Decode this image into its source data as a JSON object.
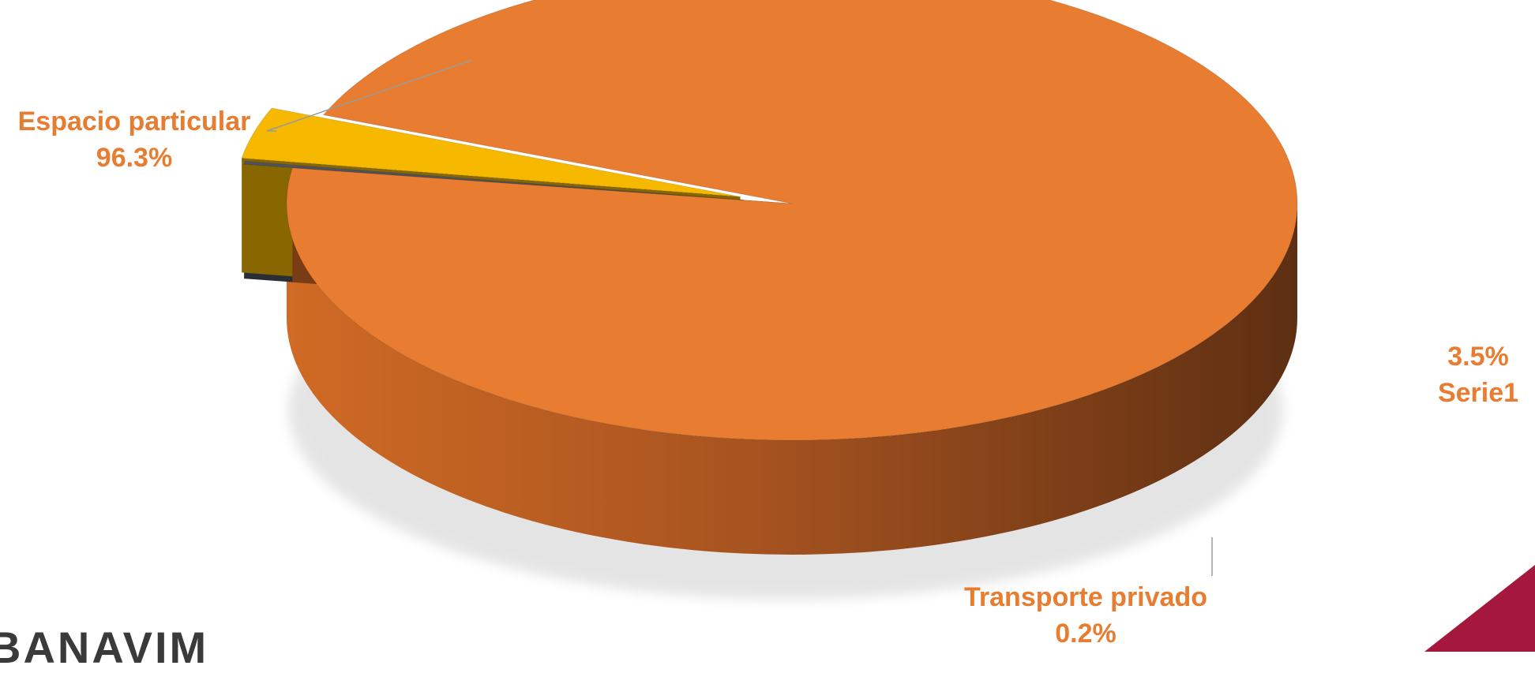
{
  "chart_data": {
    "type": "pie",
    "style": "3d-exploded",
    "series_name": "Serie1",
    "slices": [
      {
        "label": "Espacio particular",
        "value": 96.3,
        "display": "96.3%",
        "color": "#e87c30"
      },
      {
        "label": "Transporte privado",
        "value": 0.2,
        "display": "0.2%",
        "color": "#4b5263"
      },
      {
        "label": "Serie1",
        "value": 3.5,
        "display": "3.5%",
        "color": "#f7b900"
      }
    ],
    "title": "",
    "legend": "none"
  },
  "labels": {
    "slice0_name": "Espacio particular",
    "slice0_value": "96.3%",
    "slice1_name": "Transporte privado",
    "slice1_value": "0.2%",
    "slice2_value": "3.5%",
    "slice2_name": "Serie1"
  },
  "branding": {
    "logo_text": "BANAVIM",
    "accent_color": "#a5173d"
  }
}
